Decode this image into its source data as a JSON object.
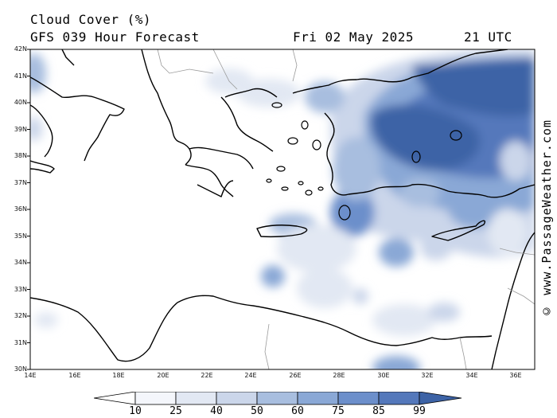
{
  "header": {
    "title": "Cloud Cover (%)",
    "model": "GFS 039 Hour Forecast",
    "date": "Fri 02 May 2025",
    "time": "21 UTC"
  },
  "credit": "© www.PassageWeather.com",
  "map": {
    "lat_labels": [
      "42N",
      "41N",
      "40N",
      "39N",
      "38N",
      "37N",
      "36N",
      "35N",
      "34N",
      "33N",
      "32N",
      "31N",
      "30N"
    ],
    "lon_labels": [
      "14E",
      "16E",
      "18E",
      "20E",
      "22E",
      "24E",
      "26E",
      "28E",
      "30E",
      "32E",
      "34E",
      "36E"
    ],
    "colors": {
      "land_line": "#000000",
      "border_line": "#9a9a9a",
      "c10": "#f4f6fb",
      "c25": "#e2e8f3",
      "c40": "#cbd6ea",
      "c50": "#a8bedf",
      "c60": "#8aa8d6",
      "c75": "#6c8fcb",
      "c85": "#5478bb",
      "c99": "#3d63a6"
    }
  },
  "scale": {
    "ticks": [
      "10",
      "25",
      "40",
      "50",
      "60",
      "75",
      "85",
      "99"
    ]
  }
}
